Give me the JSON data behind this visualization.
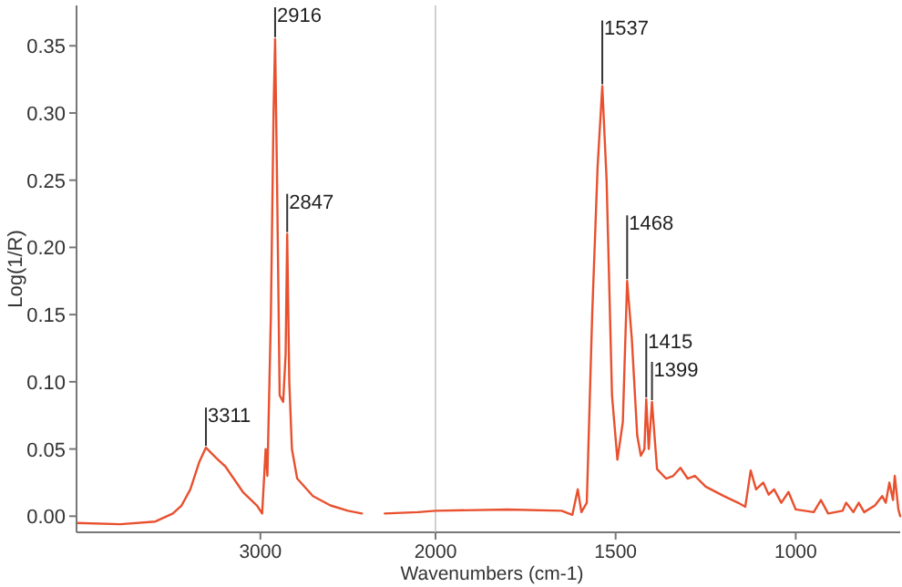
{
  "chart_data": [
    {
      "type": "line",
      "ylabel": "Log(1/R)",
      "xlim": [
        4050,
        2000
      ],
      "xticks": [
        3000,
        2000
      ],
      "ylim": [
        -0.012,
        0.38
      ],
      "yticks": [
        {
          "value": 0,
          "label": "0.00"
        },
        {
          "value": 0.05,
          "label": "0.05"
        },
        {
          "value": 0.1,
          "label": "0.10"
        },
        {
          "value": 0.15,
          "label": "0.15"
        },
        {
          "value": 0.2,
          "label": "0.20"
        },
        {
          "value": 0.25,
          "label": "0.25"
        },
        {
          "value": 0.3,
          "label": "0.30"
        },
        {
          "value": 0.35,
          "label": "0.35"
        }
      ],
      "x": [
        4050,
        3800,
        3600,
        3500,
        3450,
        3400,
        3350,
        3311,
        3250,
        3200,
        3100,
        3020,
        2990,
        2970,
        2960,
        2940,
        2925,
        2916,
        2905,
        2890,
        2870,
        2856,
        2847,
        2835,
        2820,
        2790,
        2700,
        2600,
        2500,
        2420,
        2350,
        2290,
        2100,
        2000
      ],
      "series": [
        {
          "color": "#e8502e",
          "values": [
            -0.005,
            -0.006,
            -0.004,
            0.002,
            0.008,
            0.02,
            0.04,
            0.051,
            0.043,
            0.037,
            0.018,
            0.008,
            0.002,
            0.05,
            0.03,
            0.15,
            0.3,
            0.355,
            0.25,
            0.09,
            0.085,
            0.12,
            0.21,
            0.1,
            0.05,
            0.028,
            0.015,
            0.008,
            0.004,
            0.002,
            null,
            0.002,
            0.003,
            0.004
          ]
        }
      ],
      "annotations": [
        {
          "text": "3311",
          "x": 3311,
          "y": 0.051
        },
        {
          "text": "2916",
          "x": 2916,
          "y": 0.355
        },
        {
          "text": "2847",
          "x": 2847,
          "y": 0.21
        }
      ]
    },
    {
      "type": "line",
      "xlabel": "Wavenumbers (cm-1)",
      "tick_labels": "x",
      "xlim": [
        2000,
        710
      ],
      "xticks": [
        1500,
        1000
      ],
      "ylim": [
        -0.012,
        0.38
      ],
      "x": [
        2000,
        1800,
        1650,
        1620,
        1605,
        1595,
        1580,
        1565,
        1550,
        1537,
        1525,
        1510,
        1495,
        1480,
        1468,
        1455,
        1440,
        1430,
        1420,
        1415,
        1408,
        1399,
        1385,
        1360,
        1340,
        1320,
        1300,
        1280,
        1250,
        1200,
        1160,
        1140,
        1125,
        1110,
        1090,
        1075,
        1060,
        1040,
        1020,
        1000,
        950,
        930,
        910,
        870,
        860,
        840,
        825,
        810,
        780,
        760,
        750,
        740,
        730,
        725,
        715,
        710
      ],
      "series": [
        {
          "color": "#e8502e",
          "values": [
            0.004,
            0.005,
            0.004,
            0.001,
            0.02,
            0.003,
            0.01,
            0.15,
            0.26,
            0.32,
            0.25,
            0.09,
            0.042,
            0.07,
            0.175,
            0.132,
            0.06,
            0.045,
            0.05,
            0.087,
            0.05,
            0.085,
            0.035,
            0.028,
            0.03,
            0.036,
            0.028,
            0.03,
            0.022,
            0.015,
            0.01,
            0.007,
            0.034,
            0.02,
            0.025,
            0.016,
            0.02,
            0.01,
            0.018,
            0.005,
            0.003,
            0.012,
            0.002,
            0.004,
            0.01,
            0.003,
            0.01,
            0.003,
            0.008,
            0.015,
            0.01,
            0.025,
            0.012,
            0.03,
            0.005,
            0.0
          ]
        }
      ],
      "annotations": [
        {
          "text": "1537",
          "x": 1537,
          "y": 0.32
        },
        {
          "text": "1468",
          "x": 1468,
          "y": 0.175
        },
        {
          "text": "1415",
          "x": 1415,
          "y": 0.087
        },
        {
          "text": "1399",
          "x": 1399,
          "y": 0.085
        }
      ]
    }
  ]
}
